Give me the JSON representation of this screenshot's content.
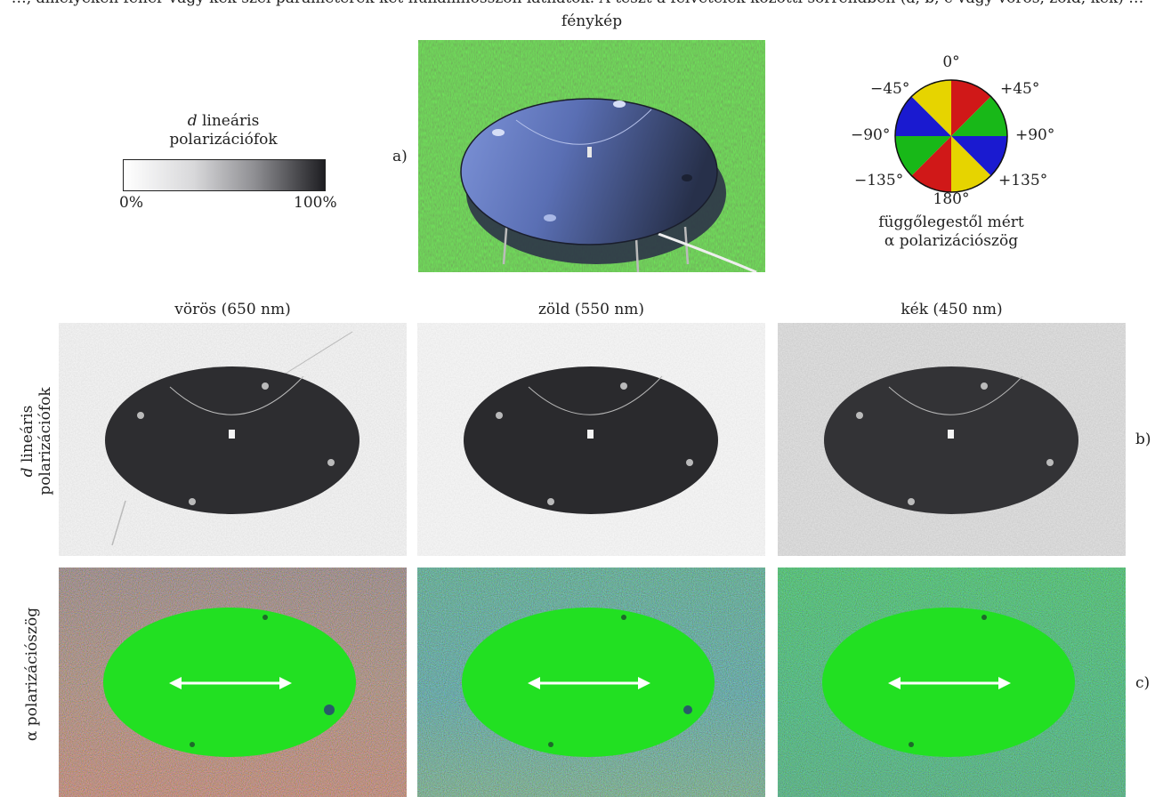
{
  "top_caption": "…, amelyeken fehér vagy kék szél paraméterek két hullámhosszon láthatók. A teszt a felvételek közötti sorrendben (a, b, c vagy vörös, zöld, kék) …",
  "photo_title": "fénykép",
  "legend_d": {
    "title_italic": "d",
    "title_rest": " lineáris",
    "title_line2": "polarizációfok",
    "min_label": "0%",
    "max_label": "100%"
  },
  "legend_alpha": {
    "angle_labels": {
      "a0": "0°",
      "p45": "+45°",
      "m45": "−45°",
      "p90": "+90°",
      "m90": "−90°",
      "p135": "+135°",
      "m135": "−135°",
      "a180": "180°"
    },
    "caption_line1": "függőlegestől mért",
    "caption_line2": "α polarizációszög",
    "sector_colors": [
      "#d01818",
      "#18b818",
      "#1a1ad0",
      "#e6d400"
    ]
  },
  "row_labels": {
    "a": "a)",
    "b": "b)",
    "c": "c)",
    "d_row_italic": "d",
    "d_row_line1_rest": " lineáris",
    "d_row_line2": "polarizációfok",
    "alpha_row": "α polarizációszög"
  },
  "column_titles": {
    "red": "vörös (650 nm)",
    "green": "zöld (550 nm)",
    "blue": "kék (450 nm)"
  },
  "colors": {
    "disc_photo": "#5a6fb4",
    "grass": "#4c6232",
    "aop_green": "#22e022",
    "arrow": "#ffffff"
  }
}
